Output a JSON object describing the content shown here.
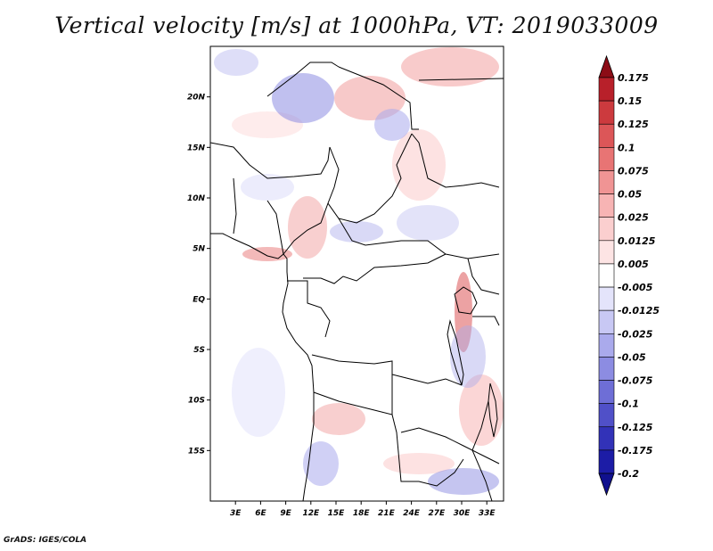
{
  "title": "Vertical velocity [m/s] at 1000hPa, VT: 2019033009",
  "credit": "GrADS: IGES/COLA",
  "map": {
    "lon_range": [
      0,
      35
    ],
    "lat_range": [
      -20,
      25
    ],
    "lat_ticks": [
      {
        "label": "20N",
        "value": 20
      },
      {
        "label": "15N",
        "value": 15
      },
      {
        "label": "10N",
        "value": 10
      },
      {
        "label": "5N",
        "value": 5
      },
      {
        "label": "EQ",
        "value": 0
      },
      {
        "label": "5S",
        "value": -5
      },
      {
        "label": "10S",
        "value": -10
      },
      {
        "label": "15S",
        "value": -15
      }
    ],
    "lon_ticks": [
      {
        "label": "3E",
        "value": 3
      },
      {
        "label": "6E",
        "value": 6
      },
      {
        "label": "9E",
        "value": 9
      },
      {
        "label": "12E",
        "value": 12
      },
      {
        "label": "15E",
        "value": 15
      },
      {
        "label": "18E",
        "value": 18
      },
      {
        "label": "21E",
        "value": 21
      },
      {
        "label": "24E",
        "value": 24
      },
      {
        "label": "27E",
        "value": 27
      },
      {
        "label": "30E",
        "value": 30
      },
      {
        "label": "33E",
        "value": 33
      }
    ]
  },
  "colorbar": {
    "levels": [
      {
        "label": "0.175",
        "color": "#a0141e"
      },
      {
        "label": "0.15",
        "color": "#b8202a"
      },
      {
        "label": "0.125",
        "color": "#cc3a3e"
      },
      {
        "label": "0.1",
        "color": "#dc5658"
      },
      {
        "label": "0.075",
        "color": "#e87474"
      },
      {
        "label": "0.05",
        "color": "#f09494"
      },
      {
        "label": "0.025",
        "color": "#f7b4b4"
      },
      {
        "label": "0.0125",
        "color": "#fbcfcf"
      },
      {
        "label": "0.005",
        "color": "#fde4e4"
      },
      {
        "label": "-0.005",
        "color": "#ffffff"
      },
      {
        "label": "-0.0125",
        "color": "#e4e4fb"
      },
      {
        "label": "-0.025",
        "color": "#c8c8f4"
      },
      {
        "label": "-0.05",
        "color": "#aaaaec"
      },
      {
        "label": "-0.075",
        "color": "#8c8ce2"
      },
      {
        "label": "-0.1",
        "color": "#6e6ed6"
      },
      {
        "label": "-0.125",
        "color": "#5050c8"
      },
      {
        "label": "-0.175",
        "color": "#3232b8"
      },
      {
        "label": "-0.2",
        "color": "#1c1ca6"
      }
    ],
    "top_arrow_color": "#8c0c16",
    "bottom_arrow_color": "#10108e"
  }
}
